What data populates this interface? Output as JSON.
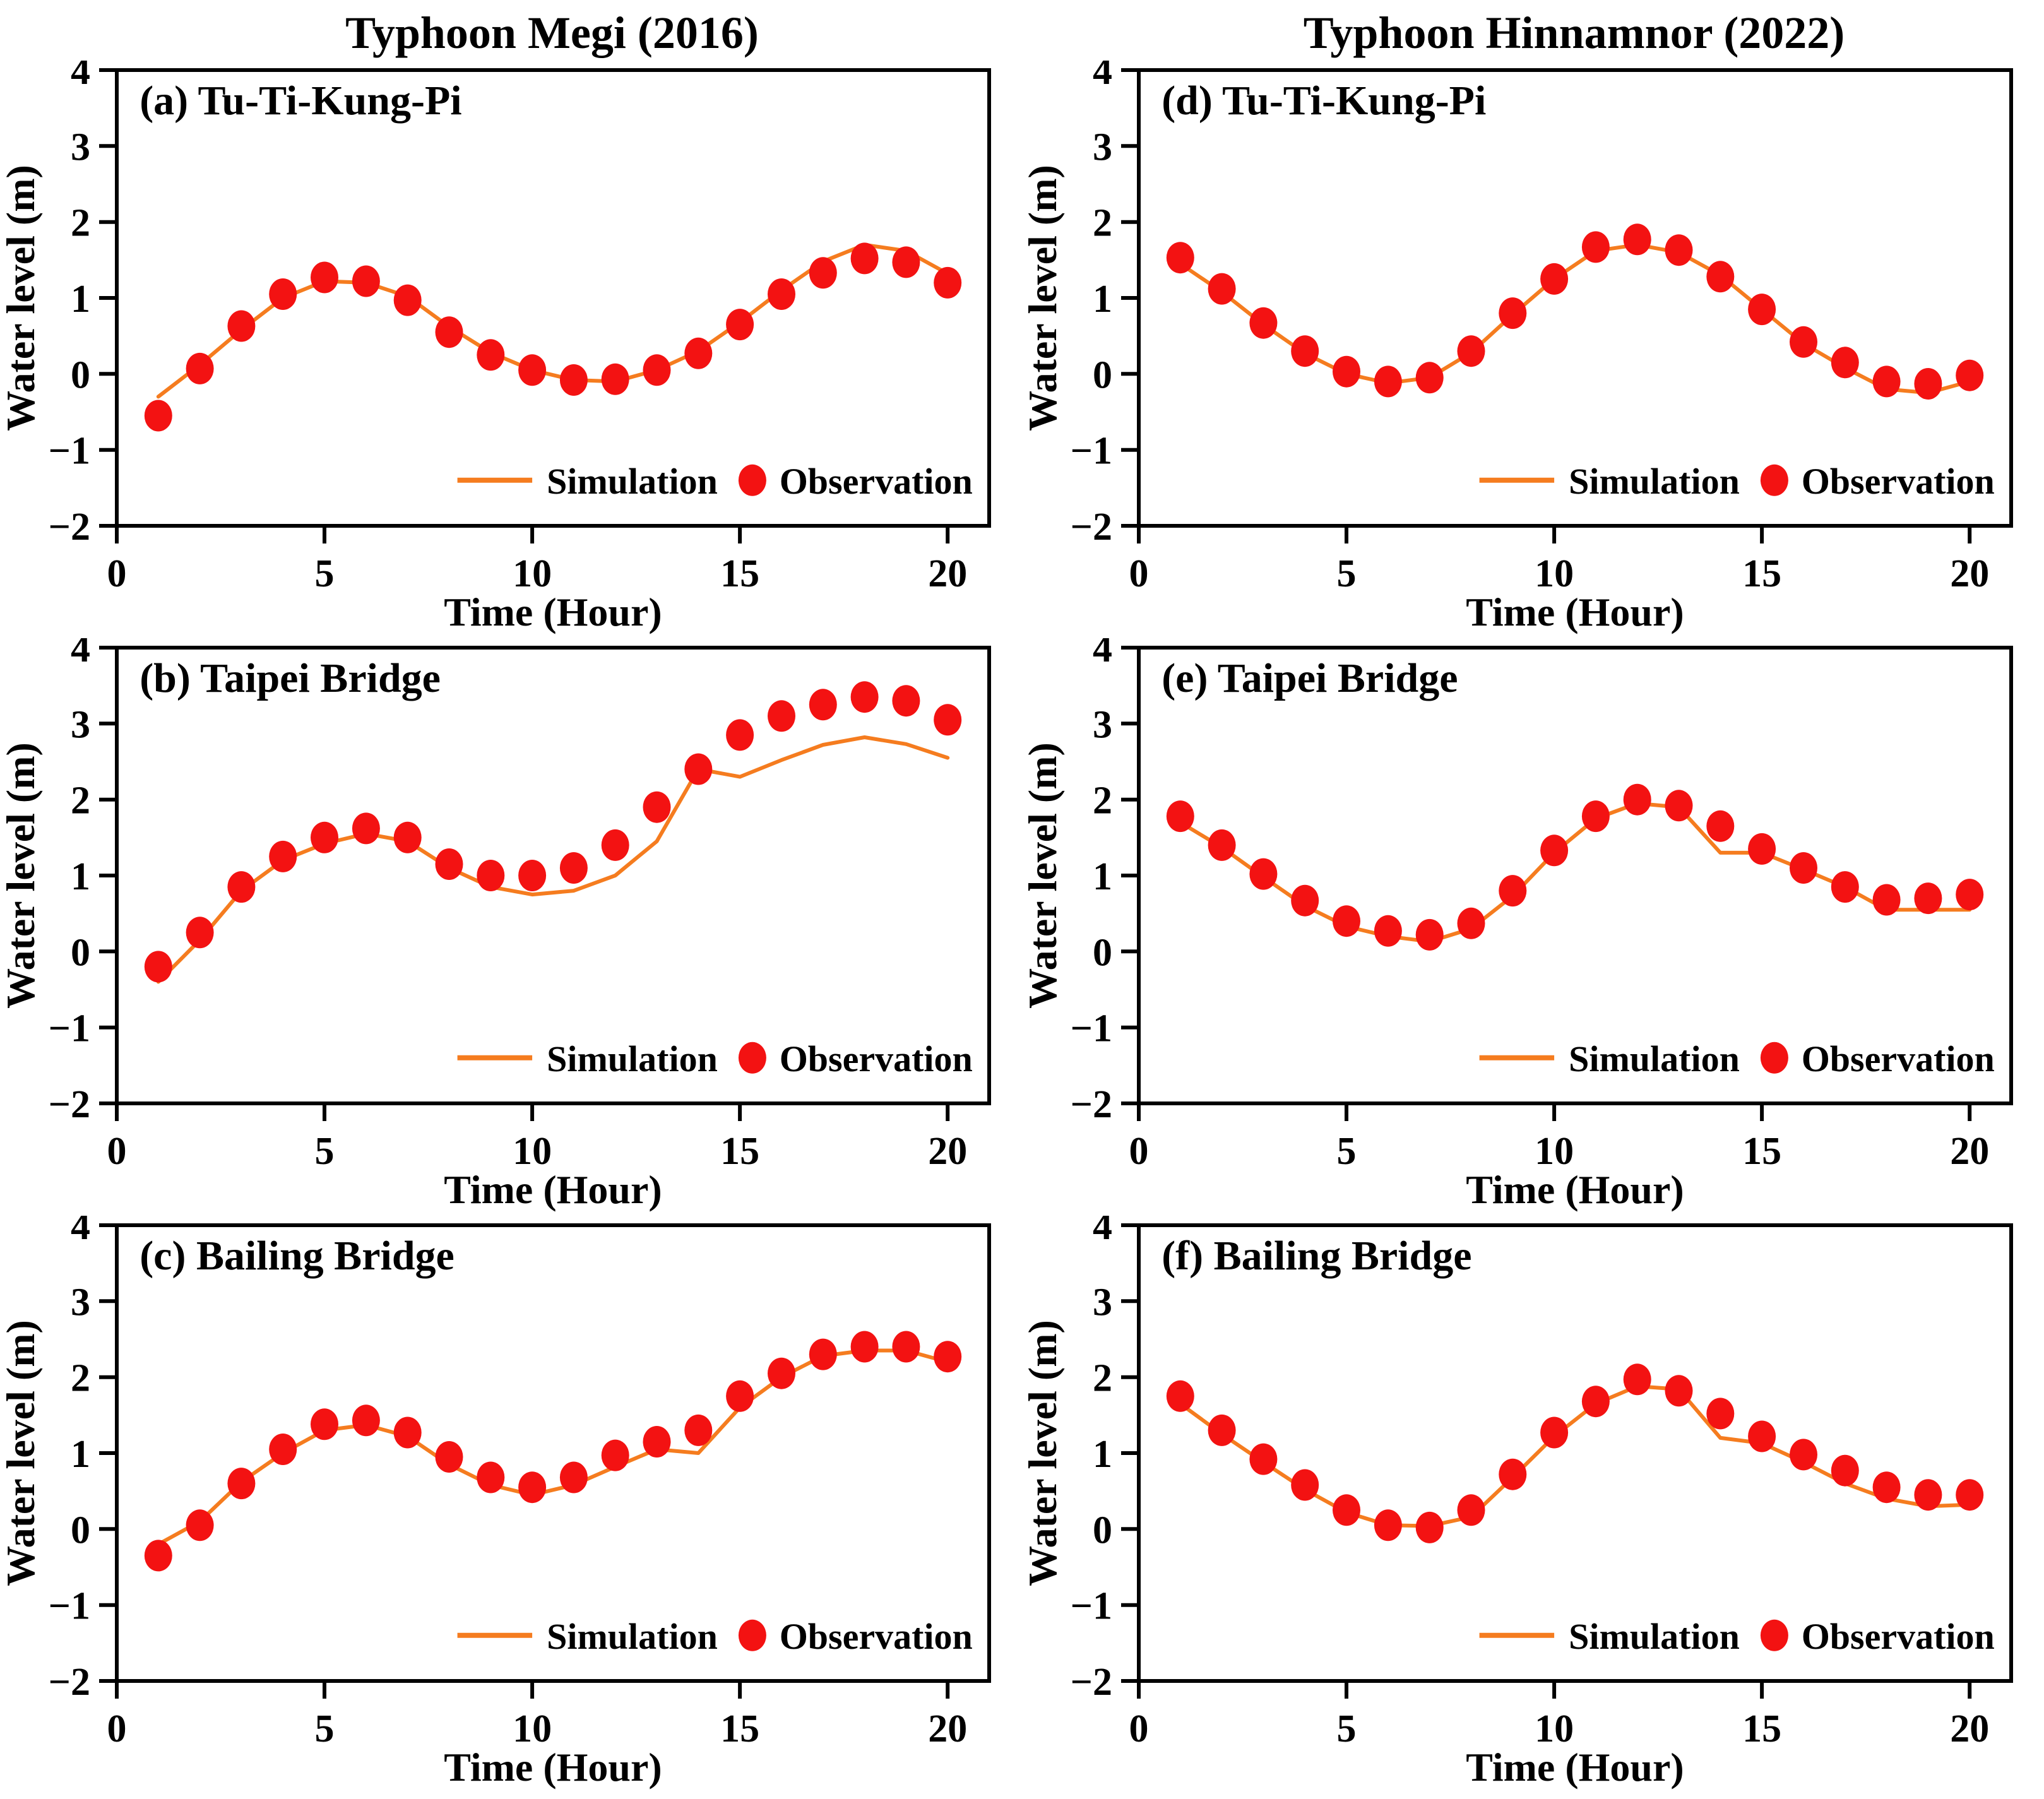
{
  "columns": [
    {
      "title": "Typhoon Megi (2016)"
    },
    {
      "title": "Typhoon Hinnamnor (2022)"
    }
  ],
  "axes": {
    "xlabel": "Time (Hour)",
    "ylabel": "Water level (m)",
    "xlim": [
      0,
      21
    ],
    "ylim": [
      -2,
      4
    ],
    "xticks": [
      0,
      5,
      10,
      15,
      20
    ],
    "xtick_labels": [
      "0",
      "5",
      "10",
      "15",
      "20"
    ],
    "yticks": [
      4,
      3,
      2,
      1,
      0,
      -1,
      -2
    ],
    "ytick_labels": [
      "4",
      "3",
      "2",
      "1",
      "0",
      "−1",
      "−2"
    ],
    "grid": "off"
  },
  "legend": {
    "simulation_label": "Simulation",
    "observation_label": "Observation",
    "position": "lower right inside"
  },
  "colors": {
    "simulation": "#F57C1F",
    "observation": "#F31212",
    "axis": "#000000",
    "background": "#FFFFFF"
  },
  "chart_data": [
    {
      "type": "line",
      "label": "(a) Tu-Ti-Kung-Pi",
      "x": [
        1,
        2,
        3,
        4,
        5,
        6,
        7,
        8,
        9,
        10,
        11,
        12,
        13,
        14,
        15,
        16,
        17,
        18,
        19,
        20
      ],
      "series": [
        {
          "name": "Simulation",
          "values": [
            -0.3,
            0.12,
            0.58,
            1.0,
            1.22,
            1.2,
            1.02,
            0.62,
            0.28,
            0.05,
            -0.08,
            -0.1,
            0.05,
            0.3,
            0.68,
            1.1,
            1.48,
            1.7,
            1.62,
            1.32
          ]
        },
        {
          "name": "Observation",
          "values": [
            -0.55,
            0.07,
            0.63,
            1.05,
            1.27,
            1.22,
            0.97,
            0.55,
            0.25,
            0.05,
            -0.08,
            -0.07,
            0.05,
            0.27,
            0.65,
            1.05,
            1.33,
            1.52,
            1.47,
            1.2
          ]
        }
      ]
    },
    {
      "type": "line",
      "label": "(b) Taipei Bridge",
      "x": [
        1,
        2,
        3,
        4,
        5,
        6,
        7,
        8,
        9,
        10,
        11,
        12,
        13,
        14,
        15,
        16,
        17,
        18,
        19,
        20
      ],
      "series": [
        {
          "name": "Simulation",
          "values": [
            -0.4,
            0.15,
            0.8,
            1.2,
            1.42,
            1.55,
            1.45,
            1.1,
            0.85,
            0.75,
            0.8,
            1.0,
            1.45,
            2.4,
            2.3,
            2.52,
            2.72,
            2.82,
            2.73,
            2.55
          ]
        },
        {
          "name": "Observation",
          "values": [
            -0.2,
            0.25,
            0.85,
            1.25,
            1.5,
            1.62,
            1.5,
            1.15,
            1.0,
            1.0,
            1.1,
            1.4,
            1.9,
            2.4,
            2.85,
            3.1,
            3.25,
            3.35,
            3.3,
            3.05
          ]
        }
      ]
    },
    {
      "type": "line",
      "label": "(c) Bailing Bridge",
      "x": [
        1,
        2,
        3,
        4,
        5,
        6,
        7,
        8,
        9,
        10,
        11,
        12,
        13,
        14,
        15,
        16,
        17,
        18,
        19,
        20
      ],
      "series": [
        {
          "name": "Simulation",
          "values": [
            -0.2,
            0.1,
            0.62,
            1.0,
            1.3,
            1.37,
            1.22,
            0.85,
            0.58,
            0.45,
            0.58,
            0.82,
            1.05,
            1.0,
            1.6,
            2.0,
            2.28,
            2.35,
            2.35,
            2.2
          ]
        },
        {
          "name": "Observation",
          "values": [
            -0.35,
            0.05,
            0.6,
            1.05,
            1.38,
            1.43,
            1.27,
            0.95,
            0.68,
            0.55,
            0.68,
            0.97,
            1.15,
            1.3,
            1.75,
            2.05,
            2.3,
            2.4,
            2.4,
            2.27
          ]
        }
      ]
    },
    {
      "type": "line",
      "label": "(d) Tu-Ti-Kung-Pi",
      "x": [
        1,
        2,
        3,
        4,
        5,
        6,
        7,
        8,
        9,
        10,
        11,
        12,
        13,
        14,
        15,
        16,
        17,
        18,
        19,
        20
      ],
      "series": [
        {
          "name": "Simulation",
          "values": [
            1.45,
            1.08,
            0.65,
            0.27,
            0.0,
            -0.12,
            -0.05,
            0.28,
            0.78,
            1.25,
            1.62,
            1.7,
            1.6,
            1.3,
            0.85,
            0.4,
            0.08,
            -0.2,
            -0.25,
            -0.1
          ]
        },
        {
          "name": "Observation",
          "values": [
            1.53,
            1.12,
            0.67,
            0.3,
            0.03,
            -0.1,
            -0.05,
            0.3,
            0.8,
            1.25,
            1.67,
            1.77,
            1.63,
            1.28,
            0.85,
            0.42,
            0.15,
            -0.1,
            -0.13,
            -0.02
          ]
        }
      ]
    },
    {
      "type": "line",
      "label": "(e) Taipei Bridge",
      "x": [
        1,
        2,
        3,
        4,
        5,
        6,
        7,
        8,
        9,
        10,
        11,
        12,
        13,
        14,
        15,
        16,
        17,
        18,
        19,
        20
      ],
      "series": [
        {
          "name": "Simulation",
          "values": [
            1.7,
            1.37,
            0.98,
            0.6,
            0.33,
            0.2,
            0.13,
            0.3,
            0.73,
            1.3,
            1.75,
            1.95,
            1.9,
            1.3,
            1.3,
            1.08,
            0.85,
            0.55,
            0.55,
            0.55
          ]
        },
        {
          "name": "Observation",
          "values": [
            1.78,
            1.4,
            1.02,
            0.67,
            0.4,
            0.27,
            0.22,
            0.37,
            0.8,
            1.33,
            1.78,
            2.0,
            1.92,
            1.65,
            1.35,
            1.1,
            0.85,
            0.68,
            0.7,
            0.75
          ]
        }
      ]
    },
    {
      "type": "line",
      "label": "(f) Bailing Bridge",
      "x": [
        1,
        2,
        3,
        4,
        5,
        6,
        7,
        8,
        9,
        10,
        11,
        12,
        13,
        14,
        15,
        16,
        17,
        18,
        19,
        20
      ],
      "series": [
        {
          "name": "Simulation",
          "values": [
            1.65,
            1.25,
            0.88,
            0.52,
            0.22,
            0.05,
            0.04,
            0.16,
            0.68,
            1.22,
            1.65,
            1.88,
            1.84,
            1.2,
            1.13,
            0.88,
            0.6,
            0.4,
            0.3,
            0.32
          ]
        },
        {
          "name": "Observation",
          "values": [
            1.75,
            1.3,
            0.92,
            0.58,
            0.25,
            0.05,
            0.02,
            0.25,
            0.72,
            1.27,
            1.68,
            1.97,
            1.82,
            1.52,
            1.22,
            0.98,
            0.77,
            0.55,
            0.45,
            0.45
          ]
        }
      ]
    }
  ]
}
